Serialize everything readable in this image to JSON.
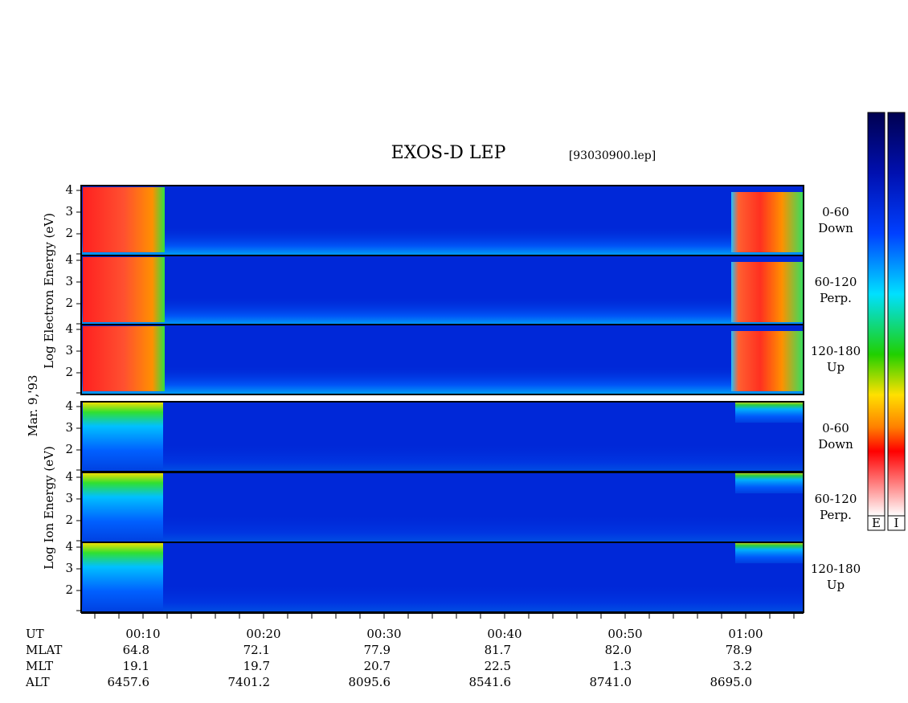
{
  "header": {
    "title": "EXOS-D LEP",
    "file": "[93030900.lep]"
  },
  "side_labels": {
    "date": "Mar. 9,'93",
    "electron": "Log Electron Energy (eV)",
    "ion": "Log Ion Energy (eV)"
  },
  "panels": [
    {
      "yticks": [
        "4",
        "3",
        "2"
      ],
      "label": [
        "0-60",
        "Down"
      ]
    },
    {
      "yticks": [
        "4",
        "3",
        "2"
      ],
      "label": [
        "60-120",
        "Perp."
      ]
    },
    {
      "yticks": [
        "4",
        "3",
        "2"
      ],
      "label": [
        "120-180",
        "Up"
      ]
    },
    {
      "yticks": [
        "4",
        "3",
        "2"
      ],
      "label": [
        "0-60",
        "Down"
      ]
    },
    {
      "yticks": [
        "4",
        "3",
        "2"
      ],
      "label": [
        "60-120",
        "Perp."
      ]
    },
    {
      "yticks": [
        "4",
        "3",
        "2"
      ],
      "label": [
        "120-180",
        "Up"
      ]
    }
  ],
  "colorbars": [
    "E",
    "I"
  ],
  "time_ticks": [
    "00:10",
    "00:20",
    "00:30",
    "00:40",
    "00:50",
    "01:00"
  ],
  "table": {
    "rows": [
      {
        "label": "UT",
        "values": []
      },
      {
        "label": "MLAT",
        "values": [
          "64.8",
          "72.1",
          "77.9",
          "81.7",
          "82.0",
          "78.9"
        ]
      },
      {
        "label": "MLT",
        "values": [
          "19.1",
          "19.7",
          "20.7",
          "22.5",
          "1.3",
          "3.2"
        ]
      },
      {
        "label": "ALT",
        "values": [
          "6457.6",
          "7401.2",
          "8095.6",
          "8541.6",
          "8741.0",
          "8695.0"
        ]
      }
    ]
  }
}
